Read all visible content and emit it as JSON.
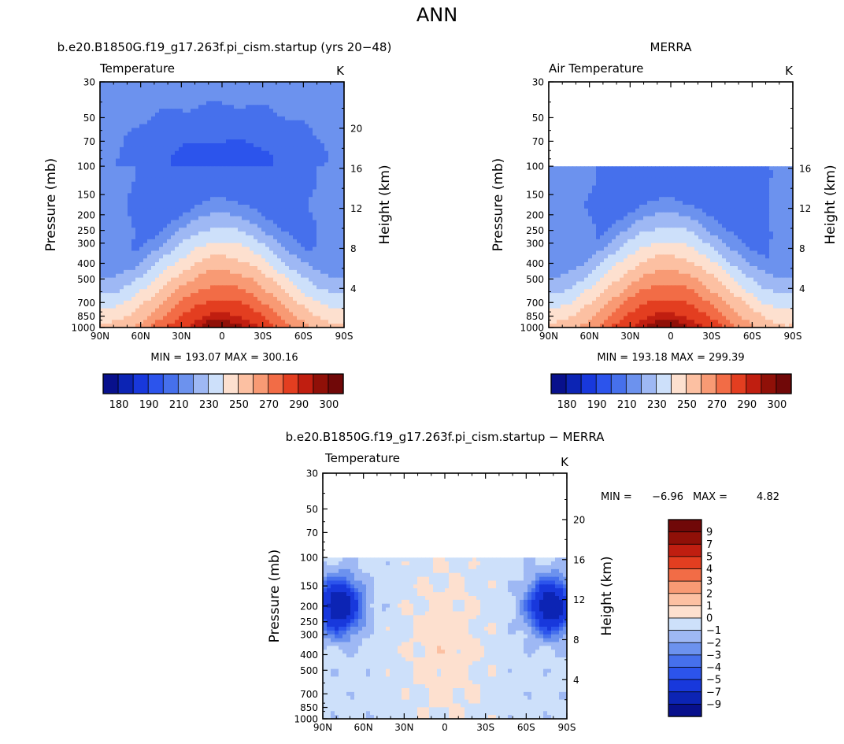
{
  "page_title": "ANN",
  "chart_data": [
    {
      "type": "heatmap",
      "title": "b.e20.B1850G.f19_g17.263f.pi_cism.startup (yrs 20−48)",
      "variable": "Temperature",
      "units": "K",
      "xlabel": "",
      "ylabel": "Pressure (mb)",
      "ylabel_right": "Height (km)",
      "x_ticks": [
        "90N",
        "60N",
        "30N",
        "0",
        "30S",
        "60S",
        "90S"
      ],
      "y_ticks": [
        "30",
        "50",
        "70",
        "100",
        "150",
        "200",
        "250",
        "300",
        "400",
        "500",
        "700",
        "850",
        "1000"
      ],
      "y_right_ticks": [
        "20",
        "16",
        "12",
        "8",
        "4"
      ],
      "min_max_text": "MIN = 193.07   MAX = 300.16",
      "colorbar_orientation": "horizontal",
      "colorbar_labels": [
        "180",
        "190",
        "210",
        "230",
        "250",
        "270",
        "290",
        "300"
      ],
      "stats": {
        "min": 193.07,
        "max": 300.16
      },
      "z_unit": "K",
      "data_top_pressure_mb": 30,
      "contour_levels": [
        180,
        185,
        190,
        200,
        210,
        220,
        230,
        240,
        250,
        260,
        270,
        280,
        290,
        295,
        300
      ]
    },
    {
      "type": "heatmap",
      "title": "MERRA",
      "variable": "Air Temperature",
      "units": "K",
      "xlabel": "",
      "ylabel": "Pressure (mb)",
      "ylabel_right": "Height (km)",
      "x_ticks": [
        "90N",
        "60N",
        "30N",
        "0",
        "30S",
        "60S",
        "90S"
      ],
      "y_ticks": [
        "30",
        "50",
        "70",
        "100",
        "150",
        "200",
        "250",
        "300",
        "400",
        "500",
        "700",
        "850",
        "1000"
      ],
      "y_right_ticks": [
        "16",
        "12",
        "8",
        "4"
      ],
      "min_max_text": "MIN = 193.18   MAX = 299.39",
      "colorbar_orientation": "horizontal",
      "colorbar_labels": [
        "180",
        "190",
        "210",
        "230",
        "250",
        "270",
        "290",
        "300"
      ],
      "stats": {
        "min": 193.18,
        "max": 299.39
      },
      "z_unit": "K",
      "data_top_pressure_mb": 100,
      "contour_levels": [
        180,
        185,
        190,
        200,
        210,
        220,
        230,
        240,
        250,
        260,
        270,
        280,
        290,
        295,
        300
      ]
    },
    {
      "type": "heatmap",
      "title": "b.e20.B1850G.f19_g17.263f.pi_cism.startup − MERRA",
      "variable": "Temperature",
      "units": "K",
      "xlabel": "",
      "ylabel": "Pressure (mb)",
      "ylabel_right": "Height (km)",
      "x_ticks": [
        "90N",
        "60N",
        "30N",
        "0",
        "30S",
        "60S",
        "90S"
      ],
      "y_ticks": [
        "30",
        "50",
        "70",
        "100",
        "150",
        "200",
        "250",
        "300",
        "400",
        "500",
        "700",
        "850",
        "1000"
      ],
      "y_right_ticks": [
        "20",
        "16",
        "12",
        "8",
        "4"
      ],
      "min_label": "MIN =",
      "min_value": "−6.96",
      "max_label": "MAX =",
      "max_value": "4.82",
      "colorbar_orientation": "vertical",
      "colorbar_labels": [
        "9",
        "7",
        "5",
        "4",
        "3",
        "2",
        "1",
        "0",
        "−1",
        "−2",
        "−3",
        "−4",
        "−5",
        "−7",
        "−9"
      ],
      "stats": {
        "min": -6.96,
        "max": 4.82
      },
      "z_unit": "K",
      "data_top_pressure_mb": 100,
      "contour_levels": [
        -9,
        -7,
        -5,
        -4,
        -3,
        -2,
        -1,
        0,
        1,
        2,
        3,
        4,
        5,
        7,
        9
      ]
    }
  ],
  "colors": {
    "abs_scale": [
      "#08108c",
      "#0c24b4",
      "#1838dc",
      "#2c54ec",
      "#4670ec",
      "#6c92ee",
      "#9eb8f4",
      "#cde0fa",
      "#fde0cf",
      "#fcc0a2",
      "#f89a74",
      "#f26c46",
      "#e33e20",
      "#c01e10",
      "#901008",
      "#700808"
    ],
    "diff_scale": [
      "#08108c",
      "#0c24b4",
      "#1838dc",
      "#2c54ec",
      "#4670ec",
      "#6c92ee",
      "#9eb8f4",
      "#cde0fa",
      "#fde0cf",
      "#fcc0a2",
      "#f89a74",
      "#f26c46",
      "#e33e20",
      "#c01e10",
      "#901008",
      "#700808"
    ]
  }
}
